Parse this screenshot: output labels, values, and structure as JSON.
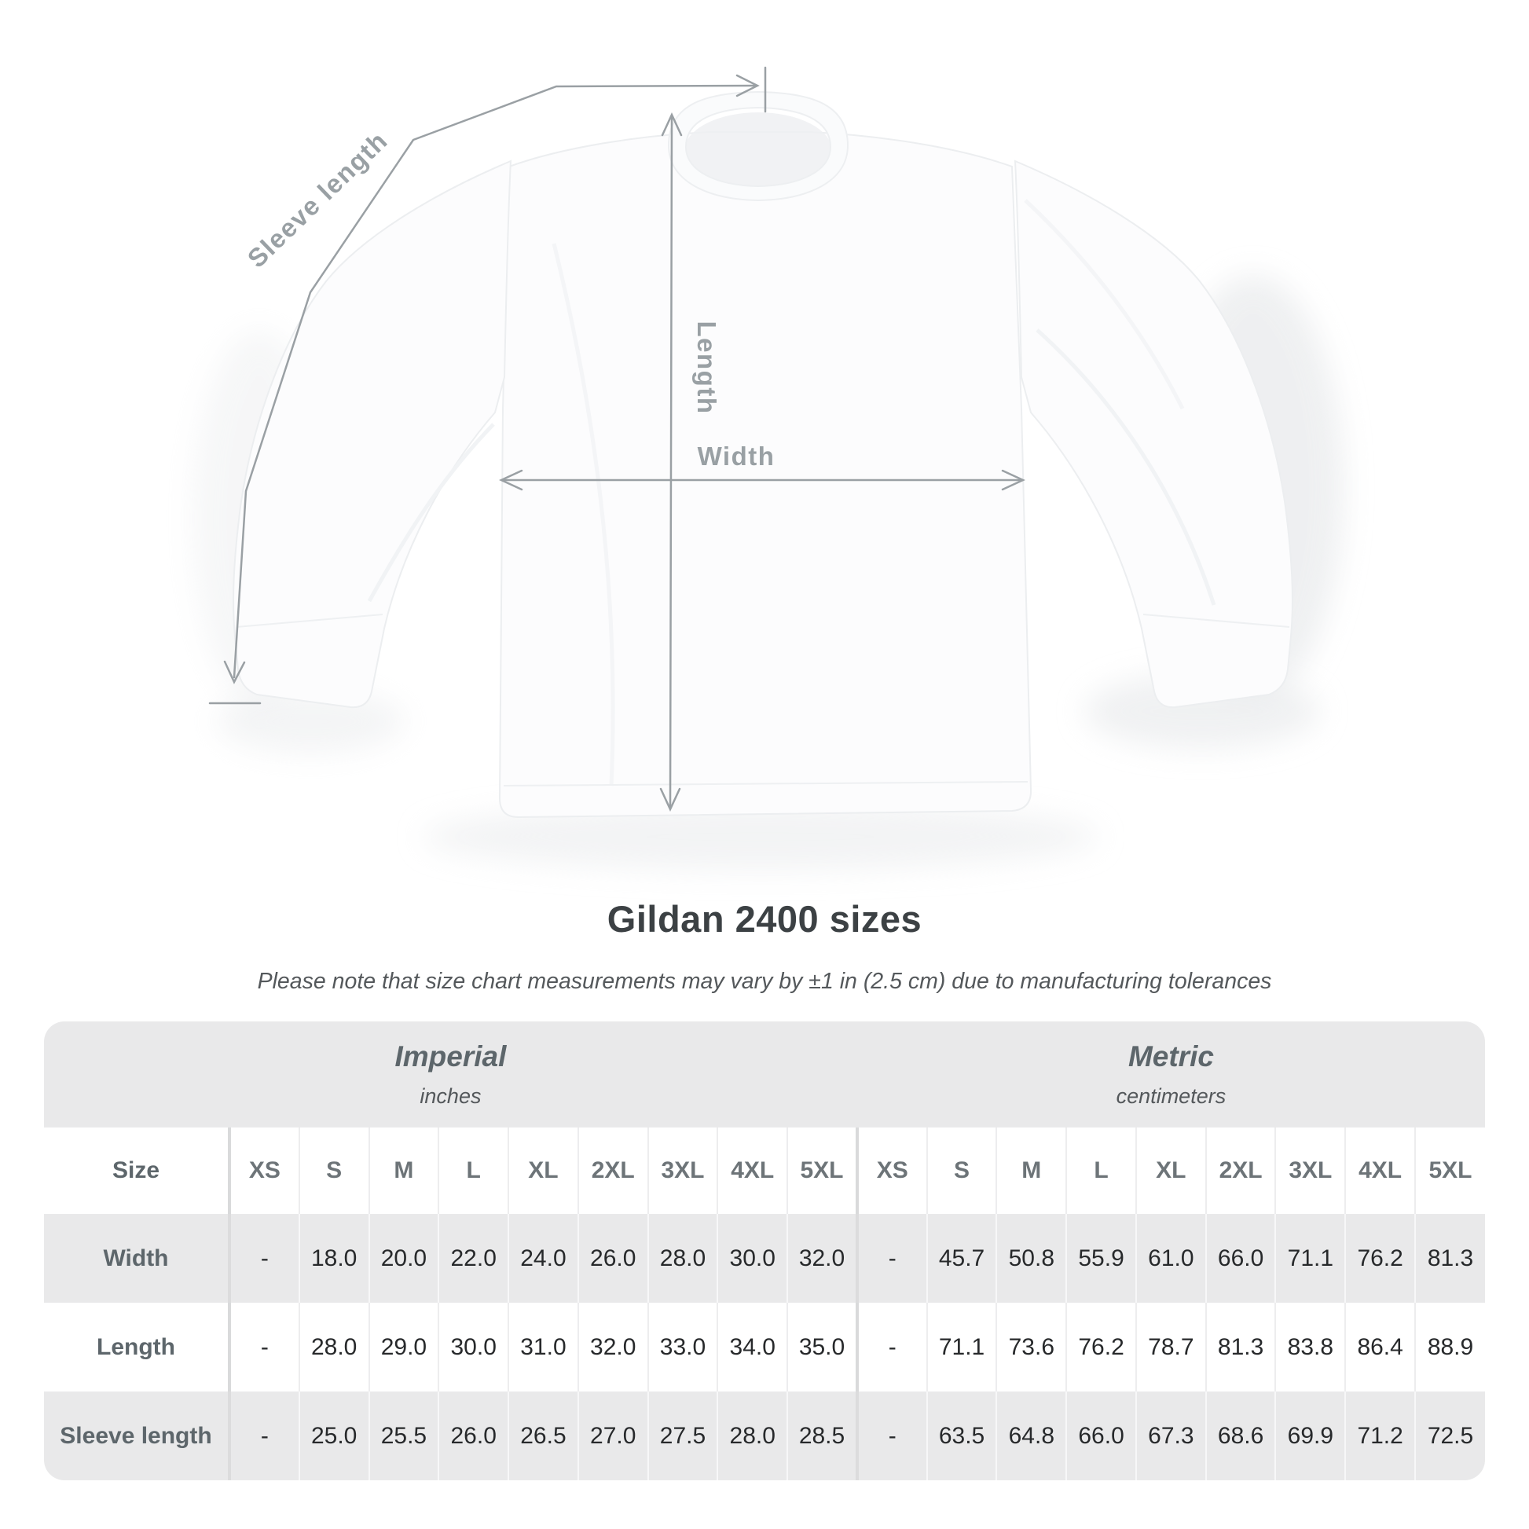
{
  "diagram": {
    "labels": {
      "sleeve_length": "Sleeve length",
      "length": "Length",
      "width": "Width"
    }
  },
  "heading": {
    "title": "Gildan 2400 sizes",
    "subtitle": "Please note that size chart measurements may vary by ±1 in (2.5 cm) due to manufacturing tolerances"
  },
  "colors": {
    "table_stripe": "#e9e9ea",
    "annotation_gray": "#9aa0a4",
    "value_text": "#27292b",
    "heading_text": "#3c4144"
  },
  "chart_data": {
    "type": "table",
    "title": "Gildan 2400 sizes",
    "note": "Please note that size chart measurements may vary by ±1 in (2.5 cm) due to manufacturing tolerances",
    "size_header_label": "Size",
    "groups": [
      {
        "label": "Imperial",
        "unit": "inches"
      },
      {
        "label": "Metric",
        "unit": "centimeters"
      }
    ],
    "sizes": [
      "XS",
      "S",
      "M",
      "L",
      "XL",
      "2XL",
      "3XL",
      "4XL",
      "5XL"
    ],
    "rows": [
      {
        "label": "Width",
        "imperial": [
          "-",
          "18.0",
          "20.0",
          "22.0",
          "24.0",
          "26.0",
          "28.0",
          "30.0",
          "32.0"
        ],
        "metric": [
          "-",
          "45.7",
          "50.8",
          "55.9",
          "61.0",
          "66.0",
          "71.1",
          "76.2",
          "81.3"
        ]
      },
      {
        "label": "Length",
        "imperial": [
          "-",
          "28.0",
          "29.0",
          "30.0",
          "31.0",
          "32.0",
          "33.0",
          "34.0",
          "35.0"
        ],
        "metric": [
          "-",
          "71.1",
          "73.6",
          "76.2",
          "78.7",
          "81.3",
          "83.8",
          "86.4",
          "88.9"
        ]
      },
      {
        "label": "Sleeve length",
        "imperial": [
          "-",
          "25.0",
          "25.5",
          "26.0",
          "26.5",
          "27.0",
          "27.5",
          "28.0",
          "28.5"
        ],
        "metric": [
          "-",
          "63.5",
          "64.8",
          "66.0",
          "67.3",
          "68.6",
          "69.9",
          "71.2",
          "72.5"
        ]
      }
    ]
  }
}
